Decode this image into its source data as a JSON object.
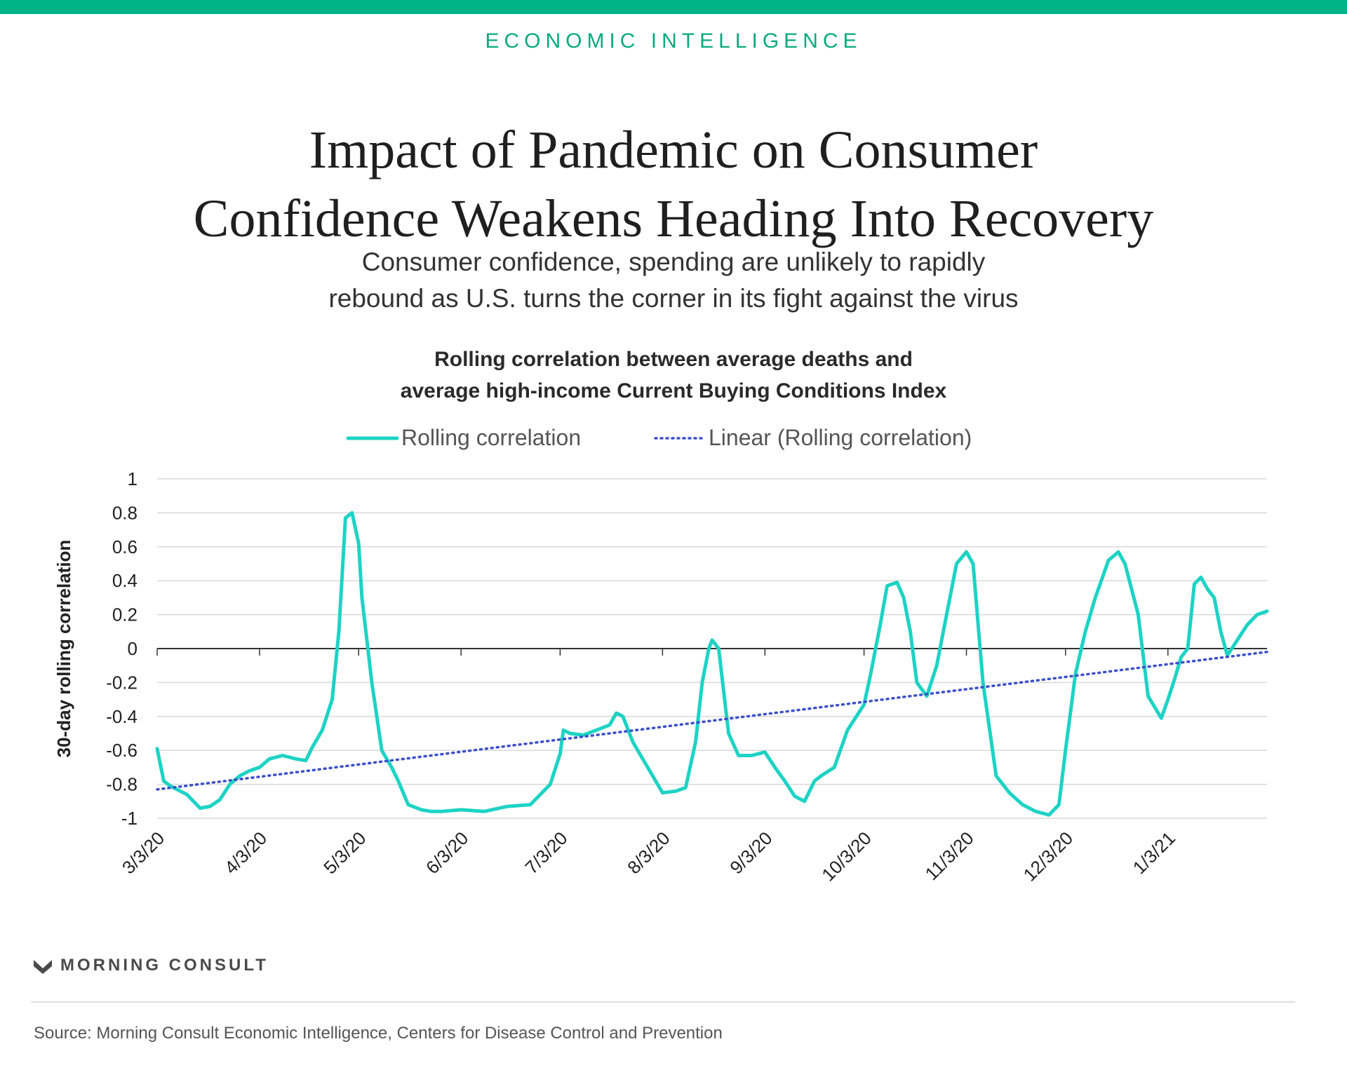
{
  "header": {
    "brand": "ECONOMIC INTELLIGENCE",
    "title_line1": "Impact of Pandemic on Consumer",
    "title_line2": "Confidence Weakens Heading Into Recovery",
    "subtitle_line1": "Consumer confidence, spending are unlikely to rapidly",
    "subtitle_line2": "rebound as U.S. turns the corner in its fight against the virus"
  },
  "chart_data": {
    "type": "line",
    "title_line1": "Rolling correlation between average deaths and",
    "title_line2": "average high-income Current Buying Conditions Index",
    "ylabel": "30-day rolling correlation",
    "xlabel": "",
    "ylim": [
      -1,
      1
    ],
    "y_ticks": [
      "1",
      "0.8",
      "0.6",
      "0.4",
      "0.2",
      "0",
      "-0.2",
      "-0.4",
      "-0.6",
      "-0.8",
      "-1"
    ],
    "x_ticks": [
      "3/3/20",
      "4/3/20",
      "5/3/20",
      "6/3/20",
      "7/3/20",
      "8/3/20",
      "9/3/20",
      "10/3/20",
      "11/3/20",
      "12/3/20",
      "1/3/21"
    ],
    "grid": true,
    "legend_position": "top-center",
    "colors": {
      "series": "#1dd3c4",
      "trend": "#3b4fcc",
      "grid": "#d9d9d9",
      "axis": "#333333"
    },
    "series": [
      {
        "name": "Rolling correlation",
        "style": "solid",
        "x": [
          "3/3/20",
          "3/5/20",
          "3/7/20",
          "3/10/20",
          "3/12/20",
          "3/16/20",
          "3/19/20",
          "3/22/20",
          "3/25/20",
          "3/28/20",
          "3/31/20",
          "4/3/20",
          "4/6/20",
          "4/10/20",
          "4/14/20",
          "4/17/20",
          "4/19/20",
          "4/22/20",
          "4/25/20",
          "4/27/20",
          "4/29/20",
          "5/1/20",
          "5/3/20",
          "5/4/20",
          "5/7/20",
          "5/10/20",
          "5/13/20",
          "5/15/20",
          "5/18/20",
          "5/22/20",
          "5/25/20",
          "5/28/20",
          "6/3/20",
          "6/10/20",
          "6/17/20",
          "6/24/20",
          "6/30/20",
          "7/3/20",
          "7/4/20",
          "7/6/20",
          "7/10/20",
          "7/14/20",
          "7/18/20",
          "7/20/20",
          "7/22/20",
          "7/25/20",
          "7/28/20",
          "7/31/20",
          "8/3/20",
          "8/7/20",
          "8/10/20",
          "8/13/20",
          "8/15/20",
          "8/17/20",
          "8/18/20",
          "8/20/20",
          "8/23/20",
          "8/26/20",
          "8/30/20",
          "9/3/20",
          "9/6/20",
          "9/9/20",
          "9/12/20",
          "9/15/20",
          "9/18/20",
          "9/20/20",
          "9/24/20",
          "9/28/20",
          "10/3/20",
          "10/5/20",
          "10/8/20",
          "10/10/20",
          "10/13/20",
          "10/15/20",
          "10/17/20",
          "10/19/20",
          "10/22/20",
          "10/25/20",
          "10/28/20",
          "10/31/20",
          "11/3/20",
          "11/5/20",
          "11/8/20",
          "11/12/20",
          "11/16/20",
          "11/20/20",
          "11/24/20",
          "11/28/20",
          "12/1/20",
          "12/3/20",
          "12/6/20",
          "12/9/20",
          "12/12/20",
          "12/16/20",
          "12/19/20",
          "12/21/20",
          "12/23/20",
          "12/25/20",
          "12/28/20",
          "1/1/21",
          "1/3/21",
          "1/5/21",
          "1/7/21",
          "1/9/21",
          "1/11/21",
          "1/13/21",
          "1/15/21",
          "1/17/21",
          "1/19/21",
          "1/21/21",
          "1/24/21",
          "1/27/21",
          "1/30/21",
          "2/2/21"
        ],
        "y": [
          -0.59,
          -0.78,
          -0.81,
          -0.84,
          -0.86,
          -0.94,
          -0.93,
          -0.89,
          -0.8,
          -0.75,
          -0.72,
          -0.7,
          -0.65,
          -0.63,
          -0.65,
          -0.66,
          -0.58,
          -0.48,
          -0.3,
          0.1,
          0.77,
          0.8,
          0.62,
          0.3,
          -0.2,
          -0.6,
          -0.7,
          -0.78,
          -0.92,
          -0.95,
          -0.96,
          -0.96,
          -0.95,
          -0.96,
          -0.93,
          -0.92,
          -0.8,
          -0.62,
          -0.48,
          -0.5,
          -0.51,
          -0.48,
          -0.45,
          -0.38,
          -0.4,
          -0.55,
          -0.65,
          -0.75,
          -0.85,
          -0.84,
          -0.82,
          -0.55,
          -0.2,
          0.0,
          0.05,
          0.0,
          -0.5,
          -0.63,
          -0.63,
          -0.61,
          -0.7,
          -0.78,
          -0.87,
          -0.9,
          -0.78,
          -0.75,
          -0.7,
          -0.48,
          -0.33,
          -0.15,
          0.15,
          0.37,
          0.39,
          0.3,
          0.1,
          -0.2,
          -0.28,
          -0.1,
          0.2,
          0.5,
          0.57,
          0.5,
          -0.2,
          -0.75,
          -0.85,
          -0.92,
          -0.96,
          -0.98,
          -0.92,
          -0.6,
          -0.15,
          0.1,
          0.3,
          0.52,
          0.57,
          0.5,
          0.35,
          0.2,
          -0.28,
          -0.41,
          -0.3,
          -0.18,
          -0.05,
          0.0,
          0.38,
          0.42,
          0.35,
          0.3,
          0.1,
          -0.04,
          0.05,
          0.14,
          0.2,
          0.22
        ]
      },
      {
        "name": "Linear (Rolling correlation)",
        "style": "dotted",
        "x": [
          "3/3/20",
          "2/2/21"
        ],
        "y": [
          -0.83,
          -0.02
        ]
      }
    ]
  },
  "footer": {
    "logo_text": "MORNING CONSULT",
    "logo_icon": "m-chevron-icon",
    "source": "Source: Morning Consult Economic Intelligence, Centers for Disease Control and Prevention"
  }
}
